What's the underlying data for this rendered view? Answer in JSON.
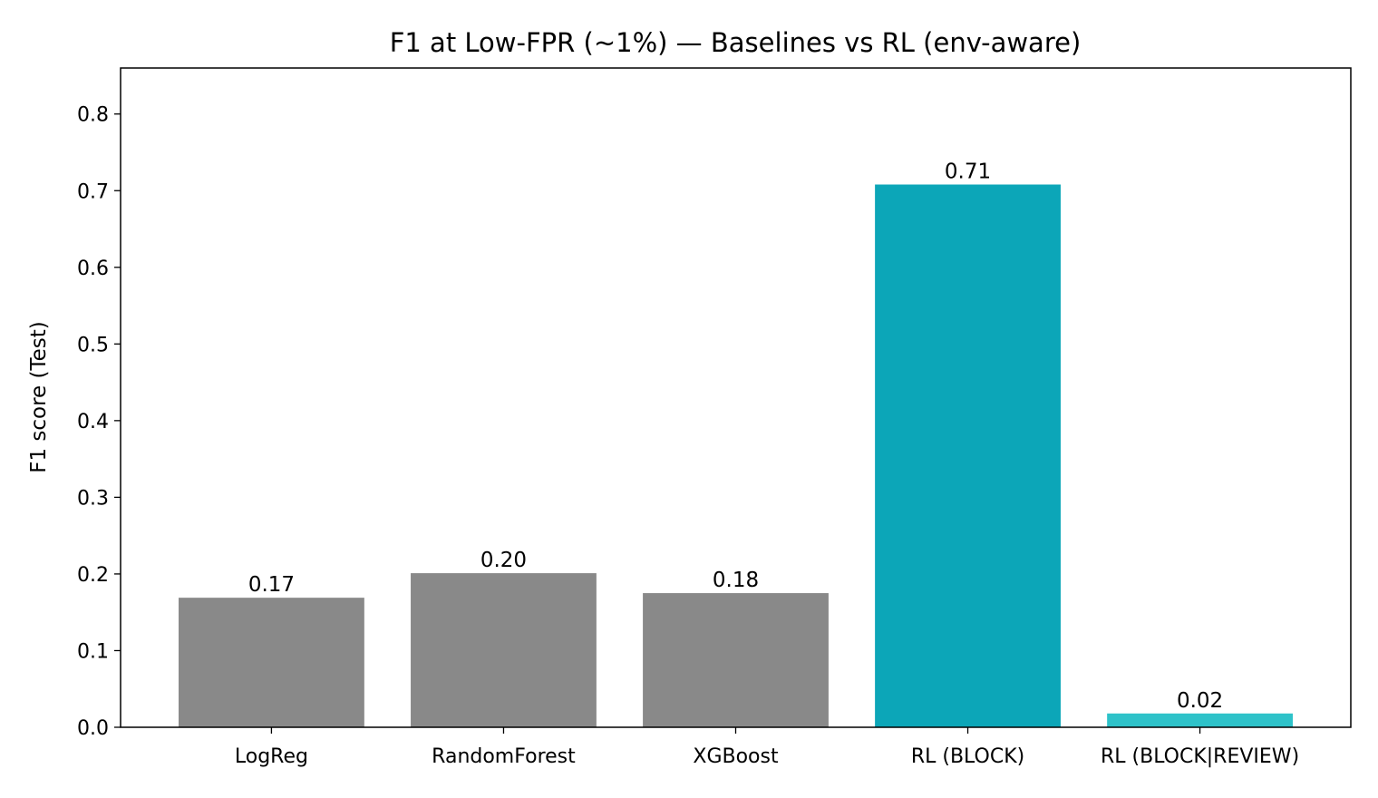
{
  "chart_data": {
    "type": "bar",
    "title": "F1 at Low-FPR (~1%) — Baselines vs RL (env-aware)",
    "xlabel": "",
    "ylabel": "F1 score (Test)",
    "ylim": [
      0,
      0.86
    ],
    "yticks": [
      0.0,
      0.1,
      0.2,
      0.3,
      0.4,
      0.5,
      0.6,
      0.7,
      0.8
    ],
    "ytick_labels": [
      "0.0",
      "0.1",
      "0.2",
      "0.3",
      "0.4",
      "0.5",
      "0.6",
      "0.7",
      "0.8"
    ],
    "categories": [
      "LogReg",
      "RandomForest",
      "XGBoost",
      "RL (BLOCK)",
      "RL (BLOCK|REVIEW)"
    ],
    "values": [
      0.169,
      0.201,
      0.175,
      0.708,
      0.018
    ],
    "value_labels": [
      "0.17",
      "0.20",
      "0.18",
      "0.71",
      "0.02"
    ],
    "colors": [
      "#898989",
      "#898989",
      "#898989",
      "#0ca6b8",
      "#2ec2c9"
    ],
    "grid": false,
    "legend": "none"
  }
}
